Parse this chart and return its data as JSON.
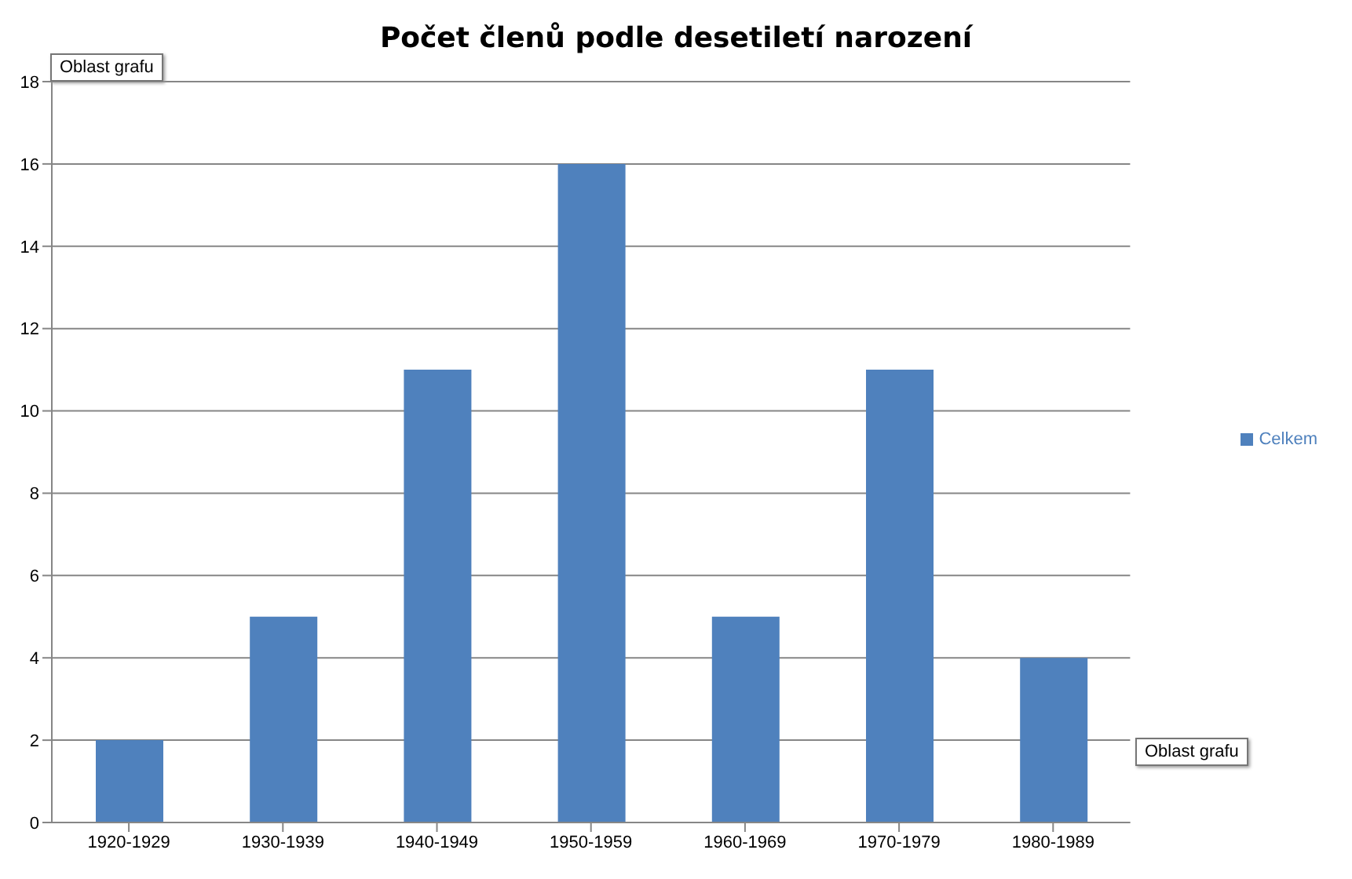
{
  "chart_data": {
    "type": "bar",
    "title": "Počet členů podle desetiletí narození",
    "categories": [
      "1920-1929",
      "1930-1939",
      "1940-1949",
      "1950-1959",
      "1960-1969",
      "1970-1979",
      "1980-1989"
    ],
    "series": [
      {
        "name": "Celkem",
        "color": "#4f81bd",
        "values": [
          2,
          5,
          11,
          16,
          5,
          11,
          4
        ]
      }
    ],
    "ylim": [
      0,
      18
    ],
    "yticks": [
      0,
      2,
      4,
      6,
      8,
      10,
      12,
      14,
      16,
      18
    ],
    "grid": "y",
    "legend": "right",
    "annotations": [
      "Oblast grafu",
      "Oblast grafu"
    ]
  }
}
